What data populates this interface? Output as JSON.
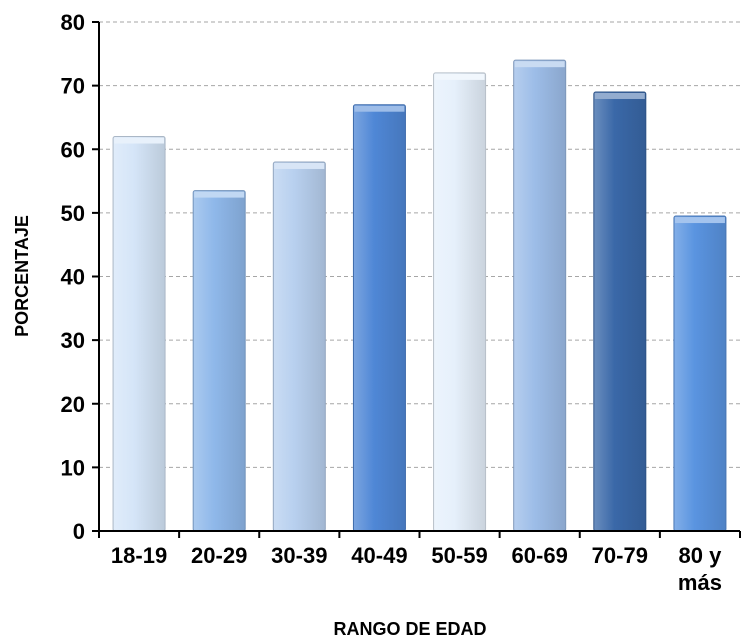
{
  "chart_data": {
    "type": "bar",
    "categories": [
      "18-19",
      "20-29",
      "30-39",
      "40-49",
      "50-59",
      "60-69",
      "70-79",
      "80 y más"
    ],
    "category_lines": [
      [
        "18-19"
      ],
      [
        "20-29"
      ],
      [
        "30-39"
      ],
      [
        "40-49"
      ],
      [
        "50-59"
      ],
      [
        "60-69"
      ],
      [
        "70-79"
      ],
      [
        "80 y",
        "más"
      ]
    ],
    "values": [
      62,
      53.5,
      58,
      67,
      72,
      74,
      69,
      49.5
    ],
    "title": "",
    "xlabel": "RANGO DE EDAD",
    "ylabel": "PORCENTAJE",
    "ylim": [
      0,
      80
    ],
    "yticks": [
      0,
      10,
      20,
      30,
      40,
      50,
      60,
      70,
      80
    ],
    "grid": true,
    "bar_colors": [
      "#d5e5f8",
      "#8fb8ea",
      "#b8d0ef",
      "#4f87d6",
      "#e6f0fb",
      "#9dbde8",
      "#3a68a8",
      "#5a94e0"
    ]
  }
}
